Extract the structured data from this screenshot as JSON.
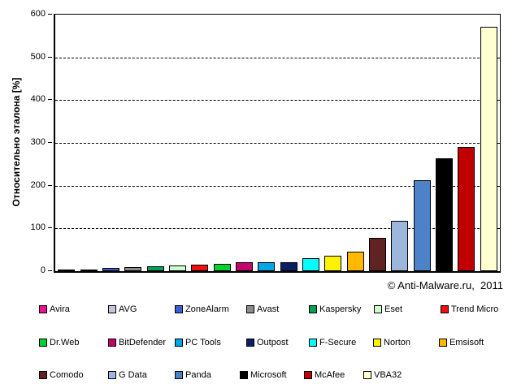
{
  "chart_data": {
    "type": "bar",
    "title": "",
    "xlabel": "",
    "ylabel": "Относительно эталона [%]",
    "ylim": [
      0,
      600
    ],
    "yticks": [
      0,
      100,
      200,
      300,
      400,
      500,
      600
    ],
    "grid": "horizontal dashed at each 100",
    "legend_position": "bottom, 3 rows",
    "bar_border_color": "#000000",
    "categories": [
      "Avira",
      "AVG",
      "ZoneAlarm",
      "Avast",
      "Kaspersky",
      "Eset",
      "Trend Micro",
      "Dr.Web",
      "BitDefender",
      "PC Tools",
      "Outpost",
      "F-Secure",
      "Norton",
      "Emsisoft",
      "Comodo",
      "G Data",
      "Panda",
      "Microsoft",
      "McAfee",
      "VBA32"
    ],
    "series": [
      {
        "name": "Avira",
        "value": 2,
        "color": "#EE1090"
      },
      {
        "name": "AVG",
        "value": 3,
        "color": "#C7C3D8"
      },
      {
        "name": "ZoneAlarm",
        "value": 7,
        "color": "#3C5ED8"
      },
      {
        "name": "Avast",
        "value": 10,
        "color": "#8C8C8C"
      },
      {
        "name": "Kaspersky",
        "value": 12,
        "color": "#00A151"
      },
      {
        "name": "Eset",
        "value": 13,
        "color": "#CCFFCC"
      },
      {
        "name": "Trend Micro",
        "value": 15,
        "color": "#EE1111"
      },
      {
        "name": "Dr.Web",
        "value": 17,
        "color": "#00D22F"
      },
      {
        "name": "BitDefender",
        "value": 20,
        "color": "#C4046C"
      },
      {
        "name": "PC Tools",
        "value": 20,
        "color": "#00A6E8"
      },
      {
        "name": "Outpost",
        "value": 20,
        "color": "#0B1F66"
      },
      {
        "name": "F-Secure",
        "value": 30,
        "color": "#00FFFF"
      },
      {
        "name": "Norton",
        "value": 36,
        "color": "#FFF200"
      },
      {
        "name": "Emsisoft",
        "value": 45,
        "color": "#FFB900"
      },
      {
        "name": "Comodo",
        "value": 78,
        "color": "#5F2321"
      },
      {
        "name": "G Data",
        "value": 118,
        "color": "#9DB6DC"
      },
      {
        "name": "Panda",
        "value": 212,
        "color": "#4E82C8"
      },
      {
        "name": "Microsoft",
        "value": 263,
        "color": "#000000"
      },
      {
        "name": "McAfee",
        "value": 290,
        "color": "#C00000"
      },
      {
        "name": "VBA32",
        "value": 572,
        "color": "#FFFFCF"
      }
    ]
  },
  "footer": {
    "copyright": "© Anti-Malware.ru,  2011"
  }
}
